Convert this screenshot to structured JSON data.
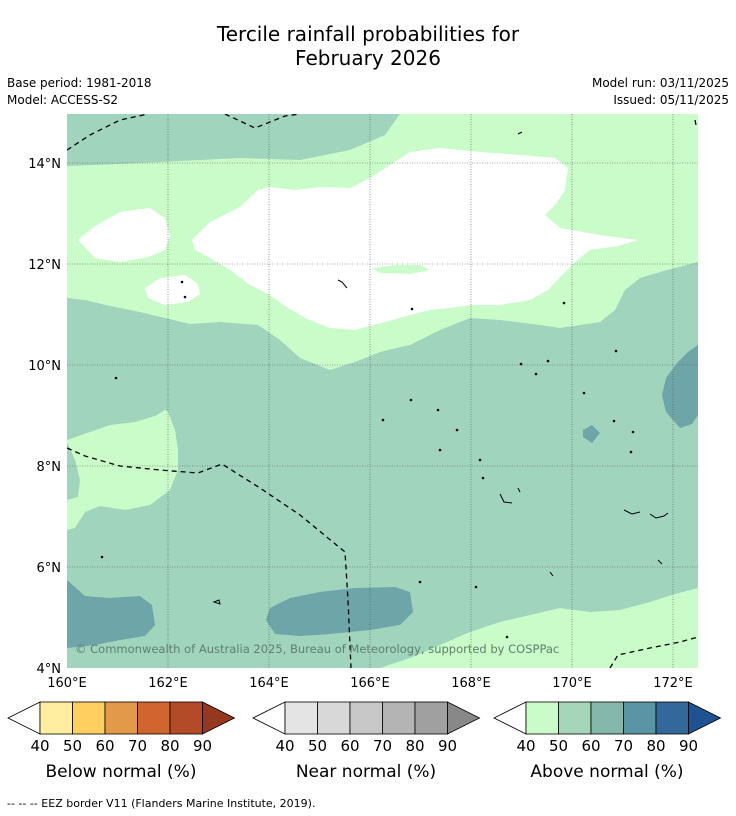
{
  "title": {
    "line1": "Tercile rainfall probabilities for",
    "line2": "February 2026"
  },
  "meta": {
    "base_period": "Base period: 1981-2018",
    "model": "Model: ACCESS-S2",
    "model_run": "Model run: 03/11/2025",
    "issued": "Issued: 05/11/2025"
  },
  "map": {
    "lat_labels": [
      "14°N",
      "12°N",
      "10°N",
      "8°N",
      "6°N",
      "4°N"
    ],
    "lon_labels": [
      "160°E",
      "162°E",
      "164°E",
      "166°E",
      "168°E",
      "170°E",
      "172°E"
    ],
    "copyright": "© Commonwealth of Australia 2025, Bureau of Meteorology, supported by COSPPac",
    "region_colors": {
      "white": "#ffffff",
      "light_green": "#c9fcc9",
      "mid_green": "#a0d4bc",
      "teal": "#6da5a8"
    }
  },
  "colorbars": [
    {
      "label": "Below normal (%)",
      "ticks": [
        "40",
        "50",
        "60",
        "70",
        "80",
        "90"
      ],
      "colors": [
        "#ffffff",
        "#ffeea0",
        "#ffd060",
        "#e39a48",
        "#d0652f",
        "#b34b28",
        "#963820"
      ]
    },
    {
      "label": "Near normal (%)",
      "ticks": [
        "40",
        "50",
        "60",
        "70",
        "80",
        "90"
      ],
      "colors": [
        "#ffffff",
        "#e4e4e4",
        "#d8d8d8",
        "#c8c8c8",
        "#b4b4b4",
        "#a0a0a0",
        "#888888"
      ]
    },
    {
      "label": "Above normal (%)",
      "ticks": [
        "40",
        "50",
        "60",
        "70",
        "80",
        "90"
      ],
      "colors": [
        "#ffffff",
        "#c9fcc9",
        "#a4d6ba",
        "#84b8aa",
        "#5b94a4",
        "#33689a",
        "#1d5391"
      ]
    }
  ],
  "footer": "-- -- -- EEZ border V11 (Flanders Marine Institute, 2019)."
}
